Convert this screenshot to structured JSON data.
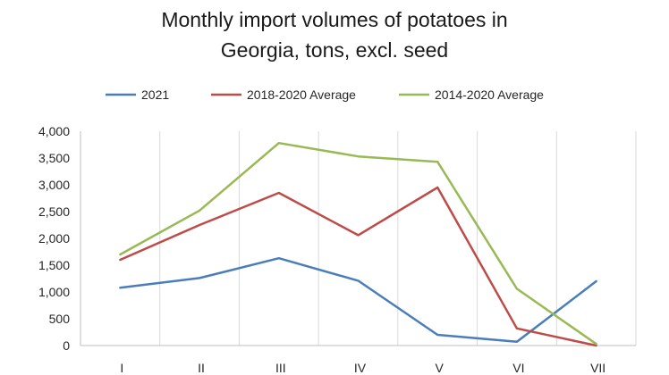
{
  "chart_data": {
    "type": "line",
    "title_lines": [
      "Monthly import volumes of potatoes in",
      "Georgia, tons, excl. seed"
    ],
    "xlabel": "",
    "ylabel": "",
    "categories": [
      "I",
      "II",
      "III",
      "IV",
      "V",
      "VI",
      "VII"
    ],
    "series": [
      {
        "name": "2021",
        "color": "#4a7ebb",
        "values": [
          1080,
          1260,
          1630,
          1210,
          200,
          70,
          1200
        ]
      },
      {
        "name": "2018-2020 Average",
        "color": "#be4b48",
        "values": [
          1600,
          2250,
          2850,
          2060,
          2950,
          320,
          0
        ]
      },
      {
        "name": "2014-2020 Average",
        "color": "#98b954",
        "values": [
          1700,
          2520,
          3780,
          3530,
          3430,
          1060,
          30
        ]
      }
    ],
    "ylim": [
      0,
      4000
    ],
    "yticks": [
      {
        "value": 0,
        "label": "0"
      },
      {
        "value": 500,
        "label": "500"
      },
      {
        "value": 1000,
        "label": "1,000"
      },
      {
        "value": 1500,
        "label": "1,500"
      },
      {
        "value": 2000,
        "label": "2,000"
      },
      {
        "value": 2500,
        "label": "2,500"
      },
      {
        "value": 3000,
        "label": "3,000"
      },
      {
        "value": 3500,
        "label": "3,500"
      },
      {
        "value": 4000,
        "label": "4,000"
      }
    ],
    "grid": "vertical",
    "legend_position": "top"
  }
}
